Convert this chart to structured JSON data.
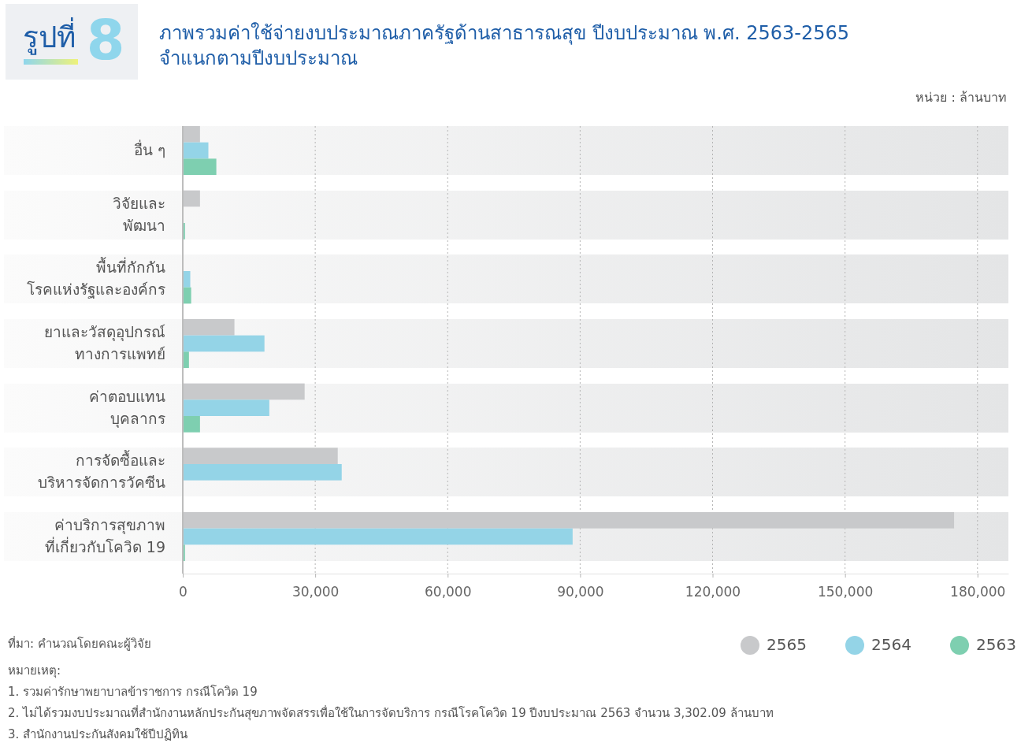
{
  "chart_data": {
    "type": "bar",
    "orientation": "horizontal",
    "title": "ภาพรวมค่าใช้จ่ายงบประมาณภาครัฐด้านสาธารณสุข ปีงบประมาณ พ.ศ. 2563-2565\nจำแนกตามปีงบประมาณ",
    "categories": [
      "อื่น ๆ",
      "วิจัยและ\nพัฒนา",
      "พื้นที่กักกัน\nโรคแห่งรัฐและองค์กร",
      "ยาและวัสดุอุปกรณ์\nทางการแพทย์",
      "ค่าตอบแทน\nบุคลากร",
      "การจัดซื้อและ\nบริหารจัดการวัคซีน",
      "ค่าบริการสุขภาพ\nที่เกี่ยวกับโควิด 19"
    ],
    "series": [
      {
        "name": "2565",
        "color": "#c8c9cb",
        "values": [
          3900,
          3900,
          null,
          11700,
          27600,
          35100,
          174700
        ]
      },
      {
        "name": "2564",
        "color": "#94d4e7",
        "values": [
          5800,
          null,
          1700,
          18500,
          19600,
          36000,
          88300
        ]
      },
      {
        "name": "2563",
        "color": "#7ecfb0",
        "values": [
          7600,
          500,
          1900,
          1400,
          3900,
          null,
          500
        ]
      }
    ],
    "xlim": [
      0,
      187000
    ],
    "xticks": [
      0,
      {
        "value": 30000,
        "label": "30,000"
      },
      {
        "value": 60000,
        "label": "60,000"
      },
      {
        "value": 90000,
        "label": "90,000"
      },
      {
        "value": 120000,
        "label": "120,000"
      },
      {
        "value": 150000,
        "label": "150,000"
      },
      {
        "value": 180000,
        "label": "180,000"
      }
    ],
    "grid": "x",
    "legend": "bottom right",
    "annotations": [
      "รูปที่ 8",
      "หน่วย : ล้านบาท",
      "ที่มา: คำนวณโดยคณะผู้วิจัย",
      "หมายเหตุ:",
      "1. รวมค่ารักษาพยาบาลข้าราชการ กรณีโควิด 19",
      "2. ไม่ได้รวมงบประมาณที่สำนักงานหลักประกันสุขภาพจัดสรรเพื่อใช้ในการจัดบริการ กรณีโรคโควิด 19 ปีงบประมาณ 2563 จำนวน 3,302.09 ล้านบาท",
      "3. สำนักงานประกันสังคมใช้ปีปฏิทิน"
    ]
  }
}
